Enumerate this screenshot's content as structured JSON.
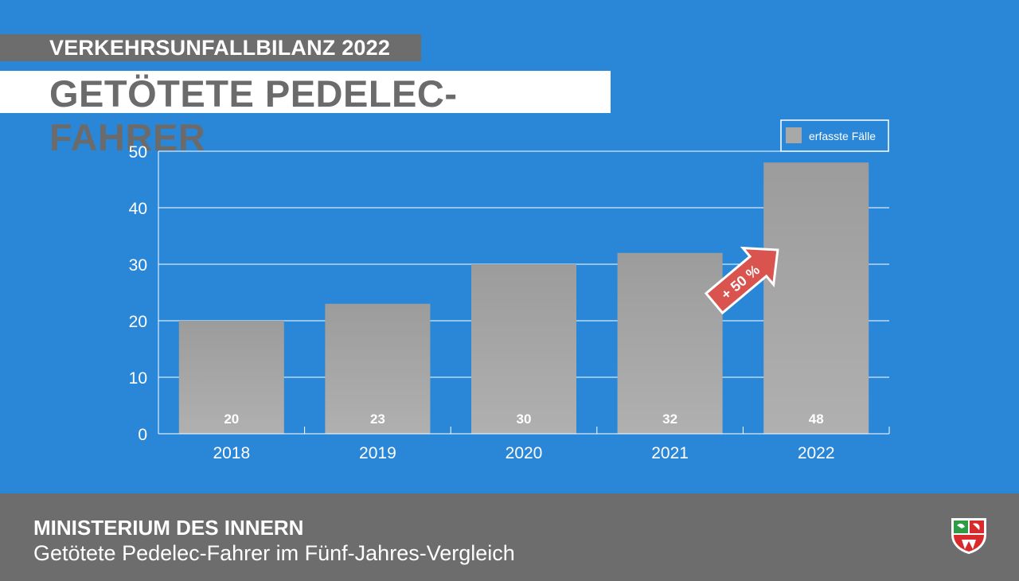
{
  "header": {
    "kicker": "VERKEHRSUNFALLBILANZ 2022",
    "title": "GETÖTETE PEDELEC-FAHRER"
  },
  "chart_data": {
    "type": "bar",
    "categories": [
      "2018",
      "2019",
      "2020",
      "2021",
      "2022"
    ],
    "series": [
      {
        "name": "erfasste Fälle",
        "values": [
          20,
          23,
          30,
          32,
          48
        ]
      }
    ],
    "data_labels": [
      "20",
      "23",
      "30",
      "32",
      "48"
    ],
    "ylim": [
      0,
      50
    ],
    "yticks": [
      0,
      10,
      20,
      30,
      40,
      50
    ],
    "grid": true,
    "legend_position": "top-right",
    "annotation": {
      "text": "+ 50 %",
      "style": "arrow"
    },
    "colors": {
      "bar": "#a8a8a8",
      "background": "#2a87d8",
      "grid": "#ffffff",
      "arrow": "#d9534f"
    }
  },
  "footer": {
    "org": "MINISTERIUM DES INNERN",
    "subtitle": "Getötete Pedelec-Fahrer im Fünf-Jahres-Vergleich"
  },
  "icons": {
    "crest": "coat-of-arms-icon"
  }
}
